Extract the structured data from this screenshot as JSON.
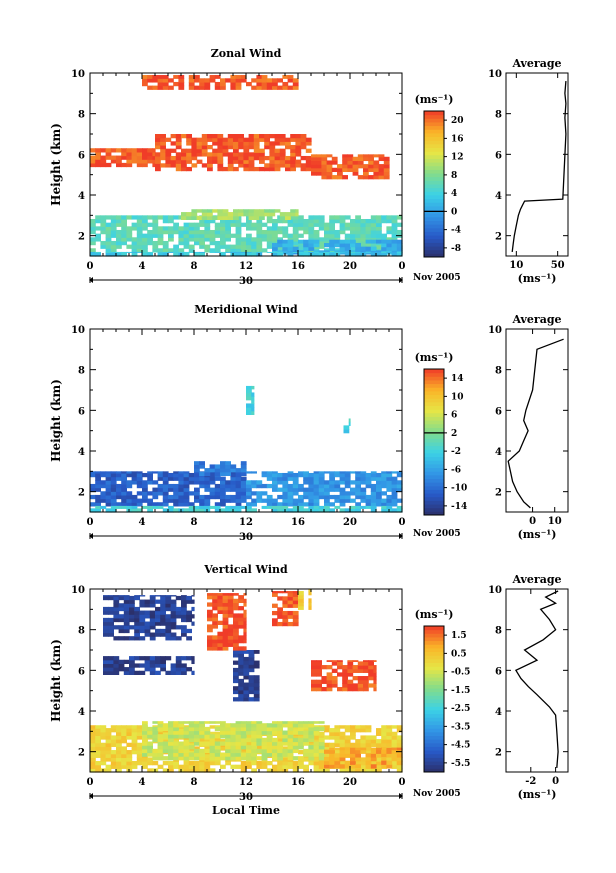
{
  "chart_data": [
    {
      "type": "heatmap",
      "title": "Zonal Wind",
      "ylabel": "Height (km)",
      "xlabel": "",
      "x_ticks": [
        "0",
        "4",
        "8",
        "12",
        "16",
        "20",
        "0"
      ],
      "y_ticks": [
        "2",
        "4",
        "6",
        "8",
        "10"
      ],
      "xlim": [
        0,
        24
      ],
      "ylim": [
        1,
        10
      ],
      "date_label": "30",
      "month_label": "Nov 2005",
      "colorbar": {
        "unit": "(ms⁻¹)",
        "ticks": [
          "20",
          "16",
          "12",
          "8",
          "4",
          "0",
          "-4",
          "-8"
        ],
        "range": [
          -10,
          22
        ],
        "marker": 0
      },
      "regions": [
        {
          "x0": 0,
          "x1": 24,
          "y0": 1.2,
          "y1": 3.0,
          "value": 6
        },
        {
          "x0": 7,
          "x1": 16,
          "y0": 2.8,
          "y1": 3.3,
          "value": 10
        },
        {
          "x0": 14,
          "x1": 24,
          "y0": 1.1,
          "y1": 1.8,
          "value": 1
        },
        {
          "x0": 0,
          "x1": 24,
          "y0": 1.0,
          "y1": 1.2,
          "value": 3
        },
        {
          "x0": 0,
          "x1": 5,
          "y0": 5.4,
          "y1": 6.3,
          "value": 21
        },
        {
          "x0": 5,
          "x1": 17,
          "y0": 5.2,
          "y1": 7.0,
          "value": 21
        },
        {
          "x0": 17,
          "x1": 23,
          "y0": 4.8,
          "y1": 6.0,
          "value": 21
        },
        {
          "x0": 4,
          "x1": 16,
          "y0": 9.2,
          "y1": 9.9,
          "value": 21
        }
      ],
      "profile": {
        "title": "Average",
        "x_ticks": [
          "10",
          "50"
        ],
        "xlim": [
          0,
          60
        ],
        "unit": "(ms⁻¹)",
        "x": [
          6,
          7,
          8,
          10,
          12,
          14,
          16,
          18,
          55,
          58,
          57,
          58,
          57,
          58
        ],
        "y": [
          1.2,
          1.6,
          2.0,
          2.5,
          3.0,
          3.3,
          3.5,
          3.7,
          3.8,
          7.0,
          7.8,
          8.5,
          9.0,
          9.6
        ]
      }
    },
    {
      "type": "heatmap",
      "title": "Meridional Wind",
      "ylabel": "Height (km)",
      "xlabel": "",
      "x_ticks": [
        "0",
        "4",
        "8",
        "12",
        "16",
        "20",
        "0"
      ],
      "y_ticks": [
        "2",
        "4",
        "6",
        "8",
        "10"
      ],
      "xlim": [
        0,
        24
      ],
      "ylim": [
        1,
        10
      ],
      "date_label": "30",
      "month_label": "Nov 2005",
      "colorbar": {
        "unit": "(ms⁻¹)",
        "ticks": [
          "14",
          "10",
          "6",
          "2",
          "-2",
          "-6",
          "-10",
          "-14"
        ],
        "range": [
          -16,
          16
        ],
        "marker": 2
      },
      "regions": [
        {
          "x0": 0,
          "x1": 12,
          "y0": 1.3,
          "y1": 3.0,
          "value": -11
        },
        {
          "x0": 8,
          "x1": 12,
          "y0": 2.8,
          "y1": 3.5,
          "value": -9
        },
        {
          "x0": 12,
          "x1": 24,
          "y0": 1.3,
          "y1": 3.0,
          "value": -7
        },
        {
          "x0": 0,
          "x1": 24,
          "y0": 1.0,
          "y1": 1.3,
          "value": -2
        },
        {
          "x0": 12,
          "x1": 12.6,
          "y0": 5.8,
          "y1": 7.2,
          "value": -2
        },
        {
          "x0": 19.5,
          "x1": 20,
          "y0": 4.9,
          "y1": 5.6,
          "value": -2
        }
      ],
      "profile": {
        "title": "Average",
        "x_ticks": [
          "0",
          "10"
        ],
        "xlim": [
          -12,
          16
        ],
        "unit": "(ms⁻¹)",
        "x": [
          -1,
          -4,
          -7,
          -9,
          -10,
          -11,
          -6,
          -4,
          -2,
          -4,
          -3,
          0,
          1,
          2,
          14
        ],
        "y": [
          1.2,
          1.5,
          2.0,
          2.5,
          3.0,
          3.5,
          4.0,
          4.5,
          5.0,
          5.5,
          6.0,
          7.0,
          8.0,
          9.0,
          9.5
        ]
      }
    },
    {
      "type": "heatmap",
      "title": "Vertical Wind",
      "ylabel": "Height (km)",
      "xlabel": "Local Time",
      "x_ticks": [
        "0",
        "4",
        "8",
        "12",
        "16",
        "20",
        "0"
      ],
      "y_ticks": [
        "2",
        "4",
        "6",
        "8",
        "10"
      ],
      "xlim": [
        0,
        24
      ],
      "ylim": [
        1,
        10
      ],
      "date_label": "30",
      "month_label": "Nov 2005",
      "colorbar": {
        "unit": "(ms⁻¹)",
        "ticks": [
          "1.5",
          "0.5",
          "-0.5",
          "-1.5",
          "-2.5",
          "-3.5",
          "-4.5",
          "-5.5"
        ],
        "range": [
          -6,
          2
        ],
        "marker": null
      },
      "regions": [
        {
          "x0": 0,
          "x1": 24,
          "y0": 1.0,
          "y1": 3.3,
          "value": 0.2
        },
        {
          "x0": 4,
          "x1": 18,
          "y0": 1.6,
          "y1": 3.5,
          "value": -0.6
        },
        {
          "x0": 18,
          "x1": 24,
          "y0": 1.2,
          "y1": 2.2,
          "value": 1.0
        },
        {
          "x0": 1,
          "x1": 8,
          "y0": 7.5,
          "y1": 9.7,
          "value": -5.5
        },
        {
          "x0": 1,
          "x1": 8,
          "y0": 5.8,
          "y1": 6.7,
          "value": -5.5
        },
        {
          "x0": 11,
          "x1": 13,
          "y0": 4.5,
          "y1": 7.0,
          "value": -5.5
        },
        {
          "x0": 9,
          "x1": 12,
          "y0": 7.0,
          "y1": 9.8,
          "value": 1.8
        },
        {
          "x0": 14,
          "x1": 16,
          "y0": 8.2,
          "y1": 9.9,
          "value": 1.8
        },
        {
          "x0": 17,
          "x1": 22,
          "y0": 5.0,
          "y1": 6.5,
          "value": 1.8
        },
        {
          "x0": 16,
          "x1": 17,
          "y0": 9.0,
          "y1": 10.0,
          "value": 0.3
        }
      ],
      "profile": {
        "title": "Average",
        "x_ticks": [
          "-2",
          "0"
        ],
        "xlim": [
          -4,
          1
        ],
        "unit": "(ms⁻¹)",
        "x": [
          0.1,
          0.2,
          0.1,
          0.0,
          -0.5,
          -1.5,
          -2.2,
          -2.8,
          -3.2,
          -1.5,
          -2.5,
          -1.0,
          0.0,
          -0.5,
          -1.2,
          0.0,
          -0.8,
          0.2
        ],
        "y": [
          1.2,
          2.0,
          3.0,
          3.8,
          4.2,
          4.8,
          5.2,
          5.6,
          6.0,
          6.5,
          7.0,
          7.5,
          8.0,
          8.5,
          9.0,
          9.3,
          9.6,
          9.9
        ]
      }
    }
  ]
}
